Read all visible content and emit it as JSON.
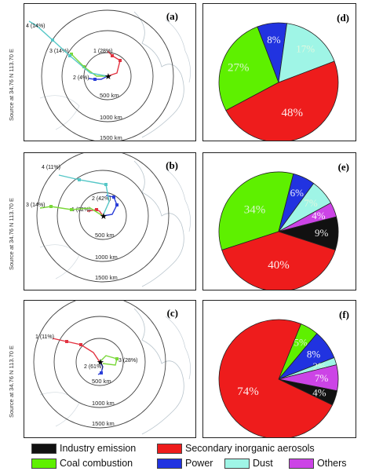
{
  "source_label": "Source    at    34.76 N   113.70 E",
  "ring_labels": [
    "500 km",
    "1000 km",
    "1500 km"
  ],
  "colors": {
    "industry": "#111111",
    "secondary": "#ee1c1c",
    "coal": "#5ef000",
    "power": "#2133e0",
    "dust": "#9ff5e6",
    "others": "#cc44e6",
    "traj_red": "#e23240",
    "traj_blue": "#2b3fd8",
    "traj_green": "#7ad83a",
    "traj_cyan": "#56c7c7"
  },
  "legend": [
    {
      "key": "industry",
      "label": "Industry emission"
    },
    {
      "key": "secondary",
      "label": "Secondary inorganic aerosols"
    },
    {
      "key": "coal",
      "label": "Coal combustion"
    },
    {
      "key": "power",
      "label": "Power"
    },
    {
      "key": "dust",
      "label": "Dust"
    },
    {
      "key": "others",
      "label": "Others"
    }
  ],
  "maps": [
    {
      "label": "(a)",
      "trajectories": [
        {
          "id": "1",
          "pct": "1 (28%)",
          "color": "traj_red"
        },
        {
          "id": "2",
          "pct": "2 (4%)",
          "color": "traj_blue"
        },
        {
          "id": "3",
          "pct": "3 (14%)",
          "color": "traj_green"
        },
        {
          "id": "4",
          "pct": "4 (14%)",
          "color": "traj_cyan"
        }
      ]
    },
    {
      "label": "(b)",
      "trajectories": [
        {
          "id": "1",
          "pct": "1 (32%)",
          "color": "traj_red"
        },
        {
          "id": "2",
          "pct": "2 (42%)",
          "color": "traj_blue"
        },
        {
          "id": "3",
          "pct": "3 (14%)",
          "color": "traj_green"
        },
        {
          "id": "4",
          "pct": "4 (11%)",
          "color": "traj_cyan"
        }
      ]
    },
    {
      "label": "(c)",
      "trajectories": [
        {
          "id": "1",
          "pct": "1 (11%)",
          "color": "traj_red"
        },
        {
          "id": "2",
          "pct": "2 (61%)",
          "color": "traj_blue"
        },
        {
          "id": "3",
          "pct": "3 (28%)",
          "color": "traj_green"
        }
      ]
    }
  ],
  "chart_data": [
    {
      "type": "pie",
      "title": "(d)",
      "slices": [
        {
          "name": "Coal combustion",
          "value": 27,
          "label": "27%",
          "color": "coal"
        },
        {
          "name": "Power",
          "value": 8,
          "label": "8%",
          "color": "power"
        },
        {
          "name": "Dust",
          "value": 17,
          "label": "17%",
          "color": "dust"
        },
        {
          "name": "Secondary inorganic aerosols",
          "value": 48,
          "label": "48%",
          "color": "secondary"
        }
      ]
    },
    {
      "type": "pie",
      "title": "(e)",
      "slices": [
        {
          "name": "Coal combustion",
          "value": 34,
          "label": "34%",
          "color": "coal"
        },
        {
          "name": "Power",
          "value": 6,
          "label": "6%",
          "color": "power"
        },
        {
          "name": "Dust",
          "value": 7,
          "label": "7%",
          "color": "dust"
        },
        {
          "name": "Others",
          "value": 4,
          "label": "4%",
          "color": "others"
        },
        {
          "name": "Industry emission",
          "value": 9,
          "label": "9%",
          "color": "industry"
        },
        {
          "name": "Secondary inorganic aerosols",
          "value": 40,
          "label": "40%",
          "color": "secondary"
        }
      ]
    },
    {
      "type": "pie",
      "title": "(f)",
      "slices": [
        {
          "name": "Coal combustion",
          "value": 5,
          "label": "5%",
          "color": "coal"
        },
        {
          "name": "Power",
          "value": 8,
          "label": "8%",
          "color": "power"
        },
        {
          "name": "Dust",
          "value": 2,
          "label": "2%",
          "color": "dust"
        },
        {
          "name": "Others",
          "value": 7,
          "label": "7%",
          "color": "others"
        },
        {
          "name": "Industry emission",
          "value": 4,
          "label": "4%",
          "color": "industry"
        },
        {
          "name": "Secondary inorganic aerosols",
          "value": 74,
          "label": "74%",
          "color": "secondary"
        }
      ]
    }
  ]
}
